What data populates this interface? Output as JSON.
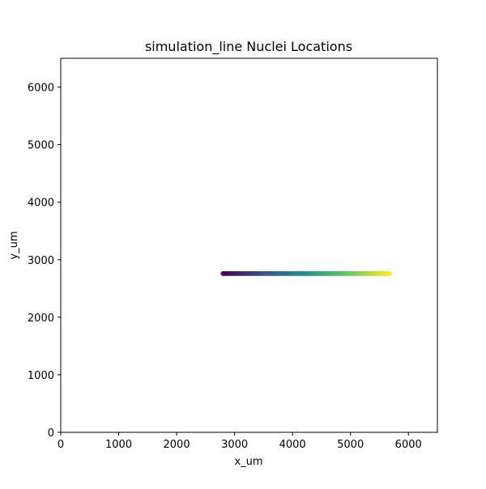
{
  "chart_data": {
    "type": "scatter",
    "title": "simulation_line Nuclei Locations",
    "xlabel": "x_um",
    "ylabel": "y_um",
    "xlim": [
      0,
      6500
    ],
    "ylim": [
      0,
      6500
    ],
    "xticks": [
      0,
      1000,
      2000,
      3000,
      4000,
      5000,
      6000
    ],
    "yticks": [
      0,
      1000,
      2000,
      3000,
      4000,
      5000,
      6000
    ],
    "grid": false,
    "colormap": "viridis",
    "color_stops": [
      "#440154",
      "#3b528b",
      "#21918c",
      "#5ec962",
      "#fde725"
    ],
    "series": [
      {
        "y": 2760,
        "x_start": 2800,
        "x_end": 5680,
        "x_step": 20,
        "color_by": "x"
      }
    ]
  }
}
